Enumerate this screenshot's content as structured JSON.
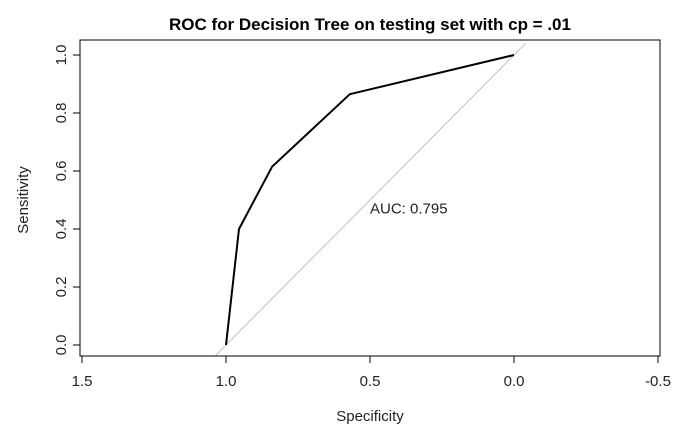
{
  "chart_data": {
    "type": "line",
    "title": "ROC for Decision Tree on testing set with cp = .01",
    "xlabel": "Specificity",
    "ylabel": "Sensitivity",
    "xlim": [
      1.5,
      -0.5
    ],
    "ylim": [
      0.0,
      1.0
    ],
    "xticks": [
      1.5,
      1.0,
      0.5,
      0.0,
      -0.5
    ],
    "xtick_labels": [
      "1.5",
      "1.0",
      "0.5",
      "0.0",
      "-0.5"
    ],
    "yticks": [
      0.0,
      0.2,
      0.4,
      0.6,
      0.8,
      1.0
    ],
    "ytick_labels": [
      "0.0",
      "0.2",
      "0.4",
      "0.6",
      "0.8",
      "1.0"
    ],
    "series": [
      {
        "name": "ROC",
        "color": "#000000",
        "x": [
          1.0,
          0.955,
          0.84,
          0.57,
          0.0
        ],
        "y": [
          0.0,
          0.4,
          0.615,
          0.865,
          1.0
        ]
      }
    ],
    "reference_line": {
      "name": "diagonal",
      "color": "#c0c0c0",
      "x": [
        1.0,
        0.0
      ],
      "y": [
        0.0,
        1.0
      ]
    },
    "annotation": {
      "text": "AUC: 0.795",
      "x": 0.5,
      "y": 0.47
    }
  }
}
